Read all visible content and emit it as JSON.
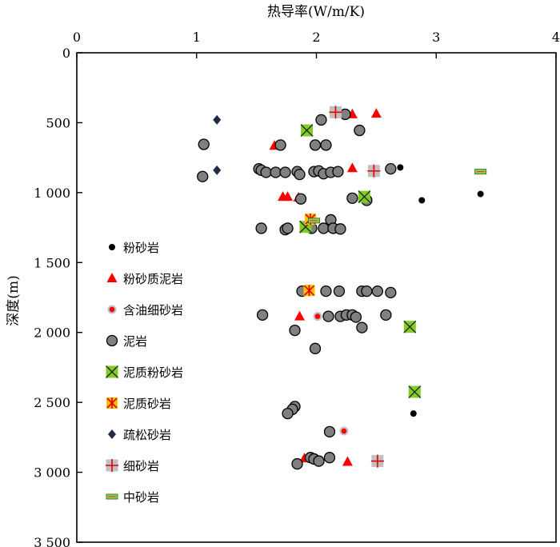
{
  "chart_data": {
    "type": "scatter",
    "xlabel": "热导率(W/m/K)",
    "ylabel": "深度(m)",
    "xlim": [
      0,
      4
    ],
    "ylim": [
      3500,
      0
    ],
    "x_axis_position": "top",
    "y_axis_inverted": true,
    "x_ticks": [
      0,
      1,
      2,
      3,
      4
    ],
    "x_tick_labels": [
      "0",
      "1",
      "2",
      "3",
      "4"
    ],
    "y_ticks": [
      0,
      500,
      1000,
      1500,
      2000,
      2500,
      3000,
      3500
    ],
    "y_tick_labels": [
      "0",
      "500",
      "1 000",
      "1 500",
      "2 000",
      "2 500",
      "3 000",
      "3 500"
    ],
    "grid": false,
    "legend_position": "left-middle",
    "series": [
      {
        "name": "粉砂岩",
        "marker": "small-circle",
        "color": "#000000",
        "points": [
          [
            2.7,
            820
          ],
          [
            2.88,
            1055
          ],
          [
            3.37,
            1010
          ],
          [
            2.81,
            2580
          ]
        ]
      },
      {
        "name": "粉砂质泥岩",
        "marker": "triangle",
        "color": "#ff0000",
        "points": [
          [
            2.3,
            440
          ],
          [
            2.5,
            435
          ],
          [
            1.65,
            665
          ],
          [
            2.3,
            825
          ],
          [
            1.72,
            1030
          ],
          [
            1.76,
            1030
          ],
          [
            1.85,
            1035
          ],
          [
            1.86,
            1885
          ],
          [
            2.26,
            2925
          ],
          [
            1.9,
            2900
          ]
        ]
      },
      {
        "name": "含油细砂岩",
        "marker": "dot-circle",
        "color": "#ff0000",
        "points": [
          [
            2.01,
            1885
          ],
          [
            2.23,
            2705
          ]
        ]
      },
      {
        "name": "泥岩",
        "marker": "circle",
        "color": "#808080",
        "points": [
          [
            2.04,
            480
          ],
          [
            2.24,
            440
          ],
          [
            2.36,
            555
          ],
          [
            1.06,
            655
          ],
          [
            1.7,
            660
          ],
          [
            1.99,
            660
          ],
          [
            2.08,
            660
          ],
          [
            1.52,
            830
          ],
          [
            1.54,
            840
          ],
          [
            1.58,
            855
          ],
          [
            1.66,
            855
          ],
          [
            1.74,
            855
          ],
          [
            1.84,
            850
          ],
          [
            1.86,
            870
          ],
          [
            1.98,
            850
          ],
          [
            2.02,
            845
          ],
          [
            2.06,
            865
          ],
          [
            2.12,
            855
          ],
          [
            2.18,
            850
          ],
          [
            2.62,
            830
          ],
          [
            1.05,
            885
          ],
          [
            1.87,
            1045
          ],
          [
            2.3,
            1040
          ],
          [
            2.42,
            1055
          ],
          [
            2.12,
            1195
          ],
          [
            1.54,
            1255
          ],
          [
            1.74,
            1265
          ],
          [
            1.76,
            1255
          ],
          [
            1.96,
            1255
          ],
          [
            2.06,
            1255
          ],
          [
            2.14,
            1255
          ],
          [
            2.2,
            1260
          ],
          [
            1.88,
            1705
          ],
          [
            2.08,
            1705
          ],
          [
            2.19,
            1705
          ],
          [
            2.38,
            1705
          ],
          [
            2.42,
            1705
          ],
          [
            2.51,
            1705
          ],
          [
            2.62,
            1715
          ],
          [
            1.55,
            1875
          ],
          [
            2.1,
            1885
          ],
          [
            2.2,
            1885
          ],
          [
            2.25,
            1875
          ],
          [
            2.3,
            1875
          ],
          [
            2.33,
            1890
          ],
          [
            2.58,
            1875
          ],
          [
            1.82,
            1985
          ],
          [
            2.38,
            1965
          ],
          [
            1.99,
            2115
          ],
          [
            1.82,
            2530
          ],
          [
            1.8,
            2550
          ],
          [
            1.76,
            2580
          ],
          [
            2.11,
            2710
          ],
          [
            1.95,
            2895
          ],
          [
            1.98,
            2905
          ],
          [
            2.02,
            2920
          ],
          [
            1.84,
            2940
          ],
          [
            2.11,
            2895
          ]
        ]
      },
      {
        "name": "泥质粉砂岩",
        "marker": "square-x",
        "color": "#80cc28",
        "points": [
          [
            1.92,
            555
          ],
          [
            2.4,
            1030
          ],
          [
            1.91,
            1245
          ],
          [
            2.78,
            1960
          ],
          [
            2.82,
            2425
          ]
        ]
      },
      {
        "name": "泥质砂岩",
        "marker": "square-star",
        "color": "#ffc000",
        "points": [
          [
            1.95,
            1190
          ],
          [
            1.94,
            1700
          ]
        ]
      },
      {
        "name": "疏松砂岩",
        "marker": "diamond",
        "color": "#1f2a44",
        "points": [
          [
            1.17,
            480
          ],
          [
            1.17,
            840
          ]
        ]
      },
      {
        "name": "细砂岩",
        "marker": "square-plus",
        "color": "#c0c0c0",
        "points": [
          [
            2.16,
            425
          ],
          [
            2.48,
            845
          ],
          [
            2.51,
            2920
          ]
        ]
      },
      {
        "name": "中砂岩",
        "marker": "rect-dash",
        "color": "#92d050",
        "points": [
          [
            3.37,
            850
          ],
          [
            1.98,
            1200
          ]
        ]
      }
    ]
  }
}
